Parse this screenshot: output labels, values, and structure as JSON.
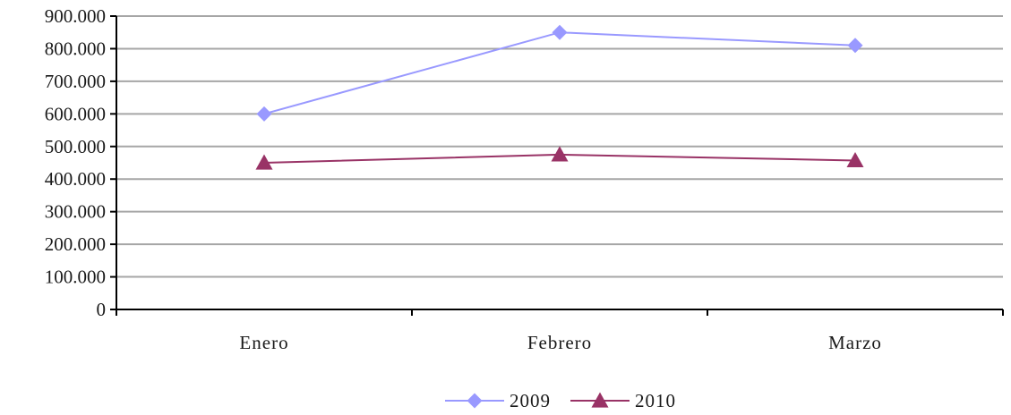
{
  "chart_data": {
    "type": "line",
    "categories": [
      "Enero",
      "Febrero",
      "Marzo"
    ],
    "series": [
      {
        "name": "2009",
        "values": [
          600000,
          850000,
          810000
        ],
        "color": "#9999ff",
        "marker": "diamond"
      },
      {
        "name": "2010",
        "values": [
          450000,
          475000,
          457000
        ],
        "color": "#993366",
        "marker": "triangle"
      }
    ],
    "ylim": [
      0,
      900000
    ],
    "yticks": [
      0,
      100000,
      200000,
      300000,
      400000,
      500000,
      600000,
      700000,
      800000,
      900000
    ],
    "ytick_labels": [
      "0",
      "100.000",
      "200.000",
      "300.000",
      "400.000",
      "500.000",
      "600.000",
      "700.000",
      "800.000",
      "900.000"
    ],
    "grid": true,
    "legend_position": "bottom",
    "title": "",
    "xlabel": "",
    "ylabel": ""
  }
}
